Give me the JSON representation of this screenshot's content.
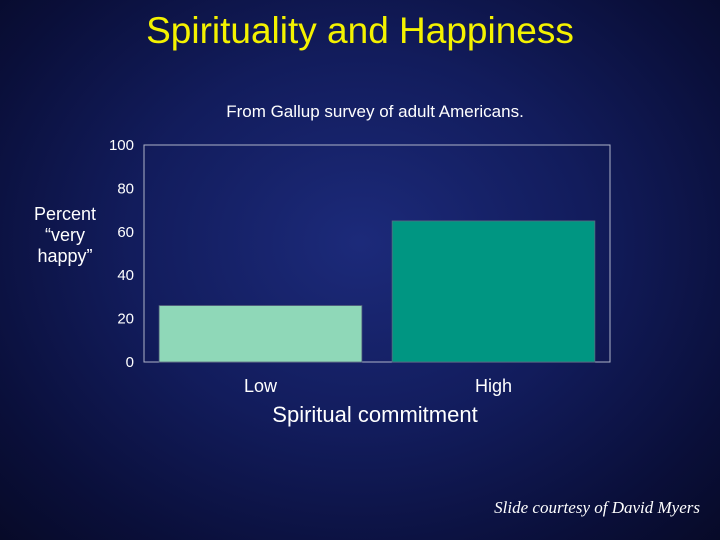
{
  "title": "Spirituality and Happiness",
  "subtitle": "From Gallup survey of adult Americans.",
  "credit": "Slide courtesy of David Myers",
  "colors": {
    "title": "#f4f200",
    "bar_low": "#8fd8b8",
    "bar_high": "#009682",
    "background": "#121c5c"
  },
  "chart_data": {
    "type": "bar",
    "categories": [
      "Low",
      "High"
    ],
    "values": [
      26,
      65
    ],
    "xlabel": "Spiritual commitment",
    "ylabel": "Percent “very happy”",
    "ylim": [
      0,
      100
    ],
    "yticks": [
      "0",
      "20",
      "40",
      "60",
      "80",
      "100"
    ],
    "grid": false
  }
}
